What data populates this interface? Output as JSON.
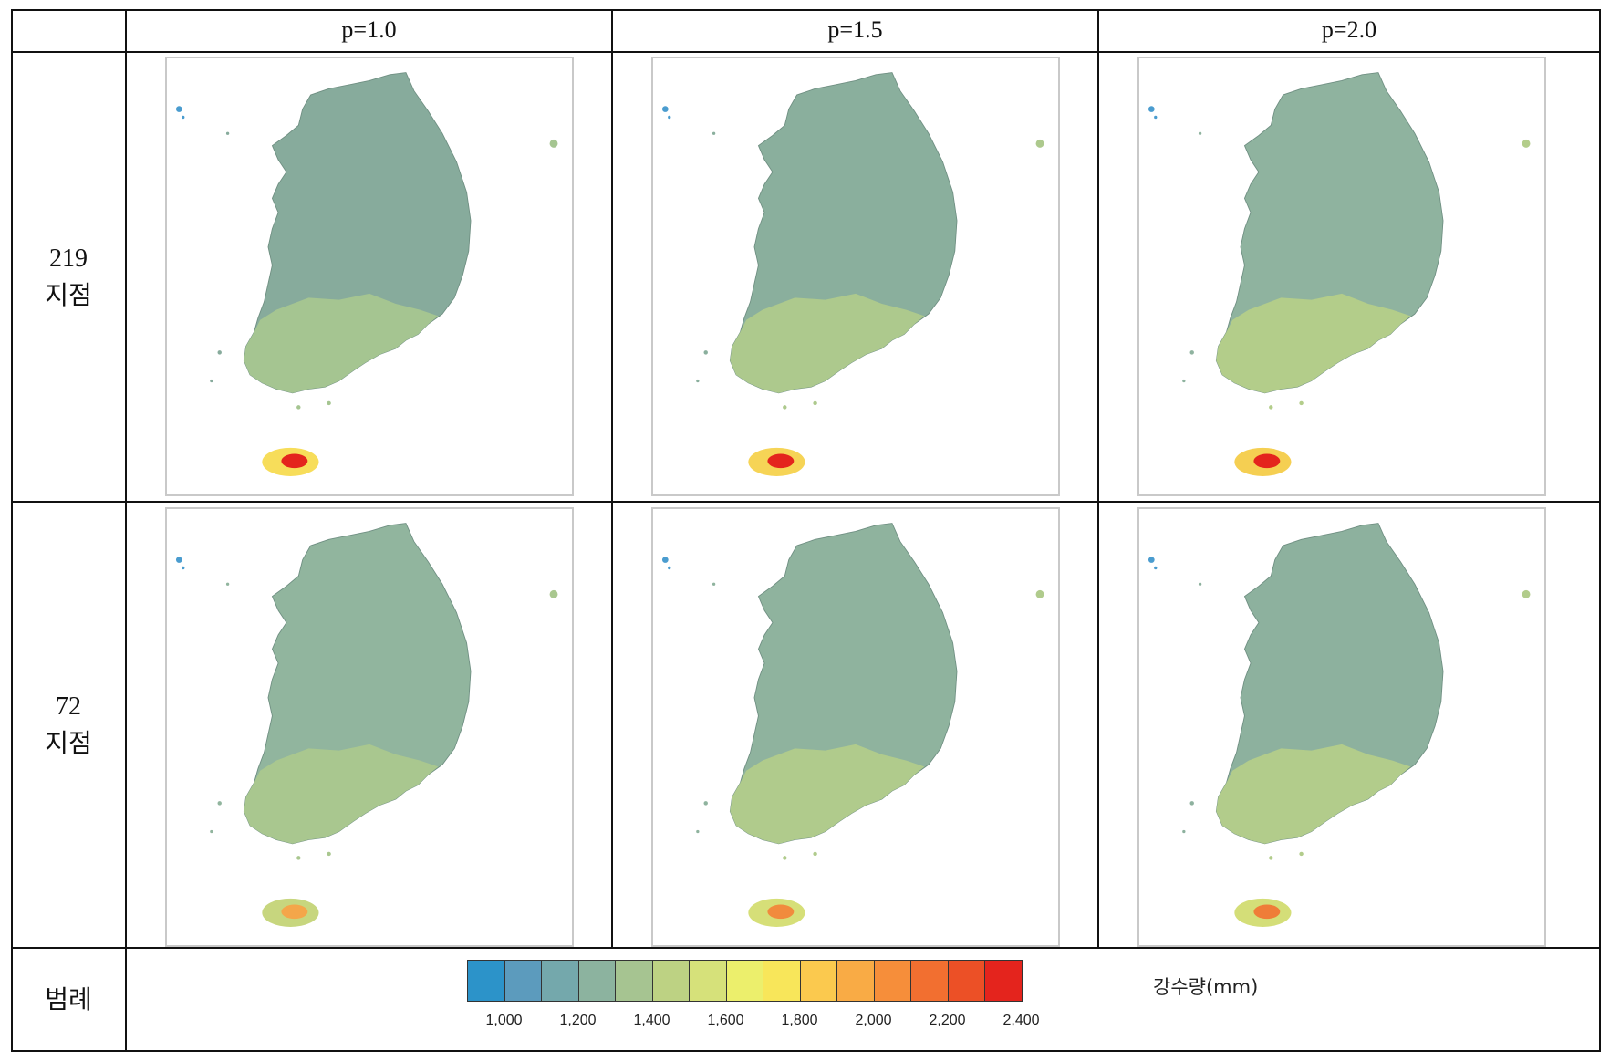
{
  "columns": [
    "p=1.0",
    "p=1.5",
    "p=2.0"
  ],
  "rows": [
    {
      "count": "219",
      "unit": "지점"
    },
    {
      "count": "72",
      "unit": "지점"
    }
  ],
  "legend_row_label": "범례",
  "legend": {
    "title": "강수량(mm)",
    "colors": [
      "#2c93c9",
      "#5c9bbd",
      "#74a8ac",
      "#8cb39f",
      "#a6c491",
      "#bdd283",
      "#d6e17a",
      "#ecef6c",
      "#f8e65a",
      "#fbc94e",
      "#f9ab45",
      "#f68e3a",
      "#f26f30",
      "#ec5026",
      "#e4241d"
    ],
    "ticks": [
      "1,000",
      "1,200",
      "1,400",
      "1,600",
      "1,800",
      "2,000",
      "2,200",
      "2,400"
    ]
  },
  "maps": [
    {
      "row": 0,
      "col": 0,
      "base": "#87ab9c",
      "south": "#a5c591",
      "jeju": "#f7dd5a",
      "jeju_core": "#e4241d"
    },
    {
      "row": 0,
      "col": 1,
      "base": "#8aaf9d",
      "south": "#adc98d",
      "jeju": "#f6d456",
      "jeju_core": "#e4241d"
    },
    {
      "row": 0,
      "col": 2,
      "base": "#8fb39f",
      "south": "#b3cd8a",
      "jeju": "#f5cf52",
      "jeju_core": "#e4241d"
    },
    {
      "row": 1,
      "col": 0,
      "base": "#91b59e",
      "south": "#a9c78f",
      "jeju": "#c7d67e",
      "jeju_core": "#f4a64a"
    },
    {
      "row": 1,
      "col": 1,
      "base": "#8fb39e",
      "south": "#b0cb8c",
      "jeju": "#d6df78",
      "jeju_core": "#f18b3d"
    },
    {
      "row": 1,
      "col": 2,
      "base": "#8db19e",
      "south": "#b2cc8b",
      "jeju": "#d4de78",
      "jeju_core": "#ef7d38"
    }
  ]
}
